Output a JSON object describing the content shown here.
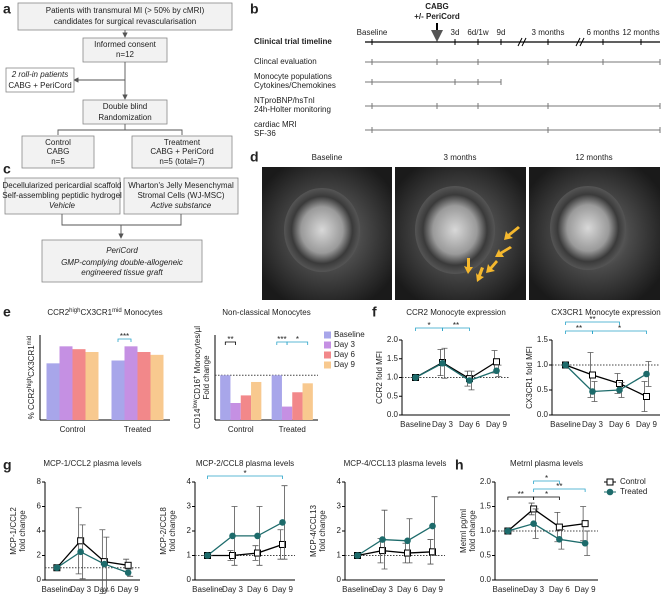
{
  "panel_labels": [
    "a",
    "b",
    "c",
    "d",
    "e",
    "f",
    "g",
    "h"
  ],
  "flowchart": {
    "nodes": [
      {
        "lines": [
          "Patients with transmural MI (> 50% by cMRI)",
          "candidates for surgical revascularisation"
        ]
      },
      {
        "lines": [
          "Informed consent",
          "n=12"
        ]
      },
      {
        "lines": [
          "2 roll-in patients",
          "CABG + PeriCord"
        ]
      },
      {
        "lines": [
          "Double blind",
          "Randomization"
        ]
      },
      {
        "lines": [
          "Control",
          "CABG",
          "n=5"
        ]
      },
      {
        "lines": [
          "Treatment",
          "CABG + PeriCord",
          "n=5 (total=7)"
        ]
      }
    ]
  },
  "timeline": {
    "intervention": [
      "CABG",
      "+/- PeriCord"
    ],
    "title": "Clinical trial timeline",
    "timepoints": [
      "Baseline",
      "3d",
      "6d/1w",
      "9d",
      "3 months",
      "6 months",
      "12 months"
    ],
    "rows": [
      [
        "Clincal evaluation"
      ],
      [
        "Monocyte populations",
        "Cytokines/Chemokines"
      ],
      [
        "NTproBNP/hsTnI",
        "24h-Holter monitoring"
      ],
      [
        "cardiac MRI",
        "SF-36"
      ]
    ]
  },
  "composition": {
    "vehicle": {
      "lines": [
        "Decellularized pericardial scaffold",
        "Self-assembling peptidic hydrogel"
      ],
      "role": "Vehicle"
    },
    "active": {
      "lines": [
        "Wharton's Jelly Mesenchymal",
        "Stromal Cells (WJ-MSC)"
      ],
      "role": "Active substance"
    },
    "product": {
      "name": "PeriCord",
      "lines": [
        "GMP-complying double-allogeneic",
        "engineered tissue graft"
      ]
    }
  },
  "mri": {
    "labels": [
      "Baseline",
      "3 months",
      "12 months"
    ]
  },
  "chart_data": [
    {
      "type": "bar",
      "title": [
        "CCR2",
        "high",
        "CX3CR1",
        "mid",
        " Monocytes"
      ],
      "ylabel": [
        [
          "% CCR2",
          "high",
          "CX3CR1",
          "mid"
        ]
      ],
      "categories": [
        "Control",
        "Treated"
      ],
      "series": [
        {
          "color": "#a8a6ea",
          "values": [
            90,
            91
          ]
        },
        {
          "color": "#c590e3",
          "values": [
            96,
            96
          ]
        },
        {
          "color": "#f2888a",
          "values": [
            95,
            94
          ]
        },
        {
          "color": "#f8c98f",
          "values": [
            94,
            93
          ]
        }
      ],
      "ylim": [
        70,
        100
      ],
      "annotations": [
        {
          "text": "***",
          "color": "#29a3c9"
        }
      ]
    },
    {
      "type": "bar",
      "title": [
        "Non-classical Monocytes"
      ],
      "ylabel": [
        [
          "CD14",
          "low",
          "CD16",
          "+",
          " Monocytes/µl"
        ],
        [
          "Fold change"
        ]
      ],
      "categories": [
        "Control",
        "Treated"
      ],
      "series": [
        {
          "name": "Baseline",
          "color": "#a8a6ea",
          "values": [
            1.0,
            1.0
          ]
        },
        {
          "name": "Day 3",
          "color": "#c590e3",
          "values": [
            0.38,
            0.3
          ]
        },
        {
          "name": "Day 6",
          "color": "#f2888a",
          "values": [
            0.55,
            0.62
          ]
        },
        {
          "name": "Day 9",
          "color": "#f8c98f",
          "values": [
            0.85,
            0.82
          ]
        }
      ],
      "ylim": [
        0,
        1.9
      ],
      "hline": 1,
      "legend": "upper right",
      "annotations": [
        {
          "text": "**",
          "color": "#000000"
        },
        {
          "text": "***",
          "color": "#29a3c9"
        },
        {
          "text": "*",
          "color": "#29a3c9"
        }
      ]
    },
    {
      "type": "line",
      "title": [
        "CCR2 Monocyte expression"
      ],
      "ylabel": [
        [
          "CCR2 fold MFI"
        ]
      ],
      "categories": [
        "Baseline",
        "Day 3",
        "Day 6",
        "Day 9"
      ],
      "ylim": [
        0,
        2
      ],
      "yticks": [
        {
          "value": 0,
          "label": "0.0"
        },
        {
          "value": 0.5,
          "label": "0.5"
        },
        {
          "value": 1,
          "label": "1.0"
        },
        {
          "value": 1.5,
          "label": "1.5"
        },
        {
          "value": 2,
          "label": "2.0"
        }
      ],
      "hline": 1,
      "series": [
        {
          "color": "#000000",
          "marker": "square",
          "values": [
            1,
            1.4,
            0.97,
            1.42
          ],
          "errors": [
            0,
            0.35,
            0.2,
            0.3
          ]
        },
        {
          "color": "#1d6b6b",
          "marker": "circle",
          "values": [
            1,
            1.38,
            0.92,
            1.18
          ],
          "errors": [
            0,
            0.4,
            0.25,
            0.15
          ]
        }
      ],
      "annotations": [
        {
          "text": "*",
          "color": "#29a3c9"
        },
        {
          "text": "**",
          "color": "#29a3c9"
        }
      ]
    },
    {
      "type": "line",
      "title": [
        "CX3CR1 Monocyte expression"
      ],
      "ylabel": [
        [
          "CX3CR1 fold MFI"
        ]
      ],
      "categories": [
        "Baseline",
        "Day 3",
        "Day 6",
        "Day 9"
      ],
      "ylim": [
        0,
        1.5
      ],
      "yticks": [
        {
          "value": 0,
          "label": "0.0"
        },
        {
          "value": 0.5,
          "label": "0.5"
        },
        {
          "value": 1,
          "label": "1.0"
        },
        {
          "value": 1.5,
          "label": "1.5"
        }
      ],
      "hline": 1,
      "series": [
        {
          "color": "#000000",
          "marker": "square",
          "values": [
            1,
            0.8,
            0.63,
            0.37
          ],
          "errors": [
            0,
            0.45,
            0.2,
            0.3
          ]
        },
        {
          "color": "#1d6b6b",
          "marker": "circle",
          "values": [
            1,
            0.47,
            0.5,
            0.82
          ],
          "errors": [
            0,
            0.2,
            0.15,
            0.25
          ]
        }
      ],
      "annotations": [
        {
          "text": "**",
          "color": "#29a3c9"
        },
        {
          "text": "**",
          "color": "#29a3c9"
        },
        {
          "text": "*",
          "color": "#29a3c9"
        }
      ]
    },
    {
      "type": "line",
      "title": [
        "MCP-1/CCL2 plasma levels"
      ],
      "ylabel": [
        [
          "MCP-1/CCL2"
        ],
        [
          "fold change"
        ]
      ],
      "categories": [
        "Baseline",
        "Day 3",
        "Day 6",
        "Day 9"
      ],
      "ylim": [
        0,
        8
      ],
      "yticks": [
        0,
        2,
        4,
        6,
        8
      ],
      "hline": 1,
      "series": [
        {
          "color": "#000000",
          "marker": "square",
          "values": [
            1,
            3.2,
            1.5,
            1.2
          ],
          "errors": [
            0,
            2.7,
            2.6,
            0.5
          ]
        },
        {
          "color": "#1d6b6b",
          "marker": "circle",
          "values": [
            1,
            2.3,
            1.3,
            0.6
          ],
          "errors": [
            0,
            2.2,
            2.2,
            0.3
          ]
        }
      ]
    },
    {
      "type": "line",
      "title": [
        "MCP-2/CCL8 plasma levels"
      ],
      "ylabel": [
        [
          "MCP-2/CCL8"
        ],
        [
          "fold change"
        ]
      ],
      "categories": [
        "Baseline",
        "Day 3",
        "Day 6",
        "Day 9"
      ],
      "ylim": [
        0,
        4
      ],
      "yticks": [
        0,
        1,
        2,
        3,
        4
      ],
      "hline": 1,
      "series": [
        {
          "color": "#000000",
          "marker": "square",
          "values": [
            1,
            1,
            1.1,
            1.45
          ],
          "errors": [
            0,
            0.2,
            0.3,
            0.6
          ]
        },
        {
          "color": "#1d6b6b",
          "marker": "circle",
          "values": [
            1,
            1.8,
            1.8,
            2.35
          ],
          "errors": [
            0,
            1.2,
            1.2,
            1.5
          ]
        }
      ],
      "annotations": [
        {
          "text": "*",
          "color": "#29a3c9"
        }
      ]
    },
    {
      "type": "line",
      "title": [
        "MCP-4/CCL13 plasma levels"
      ],
      "ylabel": [
        [
          "MCP-4/CCL13"
        ],
        [
          "fold change"
        ]
      ],
      "categories": [
        "Baseline",
        "Day 3",
        "Day 6",
        "Day 9"
      ],
      "ylim": [
        0,
        4
      ],
      "yticks": [
        0,
        1,
        2,
        3,
        4
      ],
      "hline": 1,
      "series": [
        {
          "color": "#000000",
          "marker": "square",
          "values": [
            1,
            1.2,
            1.1,
            1.15
          ],
          "errors": [
            0,
            0.5,
            0.4,
            0.5
          ]
        },
        {
          "color": "#1d6b6b",
          "marker": "circle",
          "values": [
            1,
            1.65,
            1.6,
            2.2
          ],
          "errors": [
            0,
            1.2,
            0.9,
            1.2
          ]
        }
      ]
    },
    {
      "type": "line",
      "title": [
        "Metrnl plasma levels"
      ],
      "ylabel": [
        [
          "Metrnl pg/ml"
        ],
        [
          "fold change"
        ]
      ],
      "categories": [
        "Baseline",
        "Day 3",
        "Day 6",
        "Day 9"
      ],
      "ylim": [
        0,
        2
      ],
      "yticks": [
        {
          "value": 0,
          "label": "0.0"
        },
        {
          "value": 0.5,
          "label": "0.5"
        },
        {
          "value": 1,
          "label": "1.0"
        },
        {
          "value": 1.5,
          "label": "1.5"
        },
        {
          "value": 2,
          "label": "2.0"
        }
      ],
      "hline": 1,
      "legend": "upper right",
      "series": [
        {
          "name": "Control",
          "color": "#000000",
          "marker": "square",
          "values": [
            1,
            1.45,
            1.08,
            1.15
          ],
          "errors": [
            0,
            0.12,
            0.3,
            0.35
          ]
        },
        {
          "name": "Treated",
          "color": "#1d6b6b",
          "marker": "circle",
          "values": [
            1,
            1.15,
            0.83,
            0.75
          ],
          "errors": [
            0,
            0.3,
            0.2,
            0.25
          ]
        }
      ],
      "annotations": [
        {
          "text": "**",
          "color": "#000000"
        },
        {
          "text": "*",
          "color": "#000000"
        },
        {
          "text": "*",
          "color": "#29a3c9"
        },
        {
          "text": "**",
          "color": "#29a3c9"
        }
      ]
    }
  ]
}
